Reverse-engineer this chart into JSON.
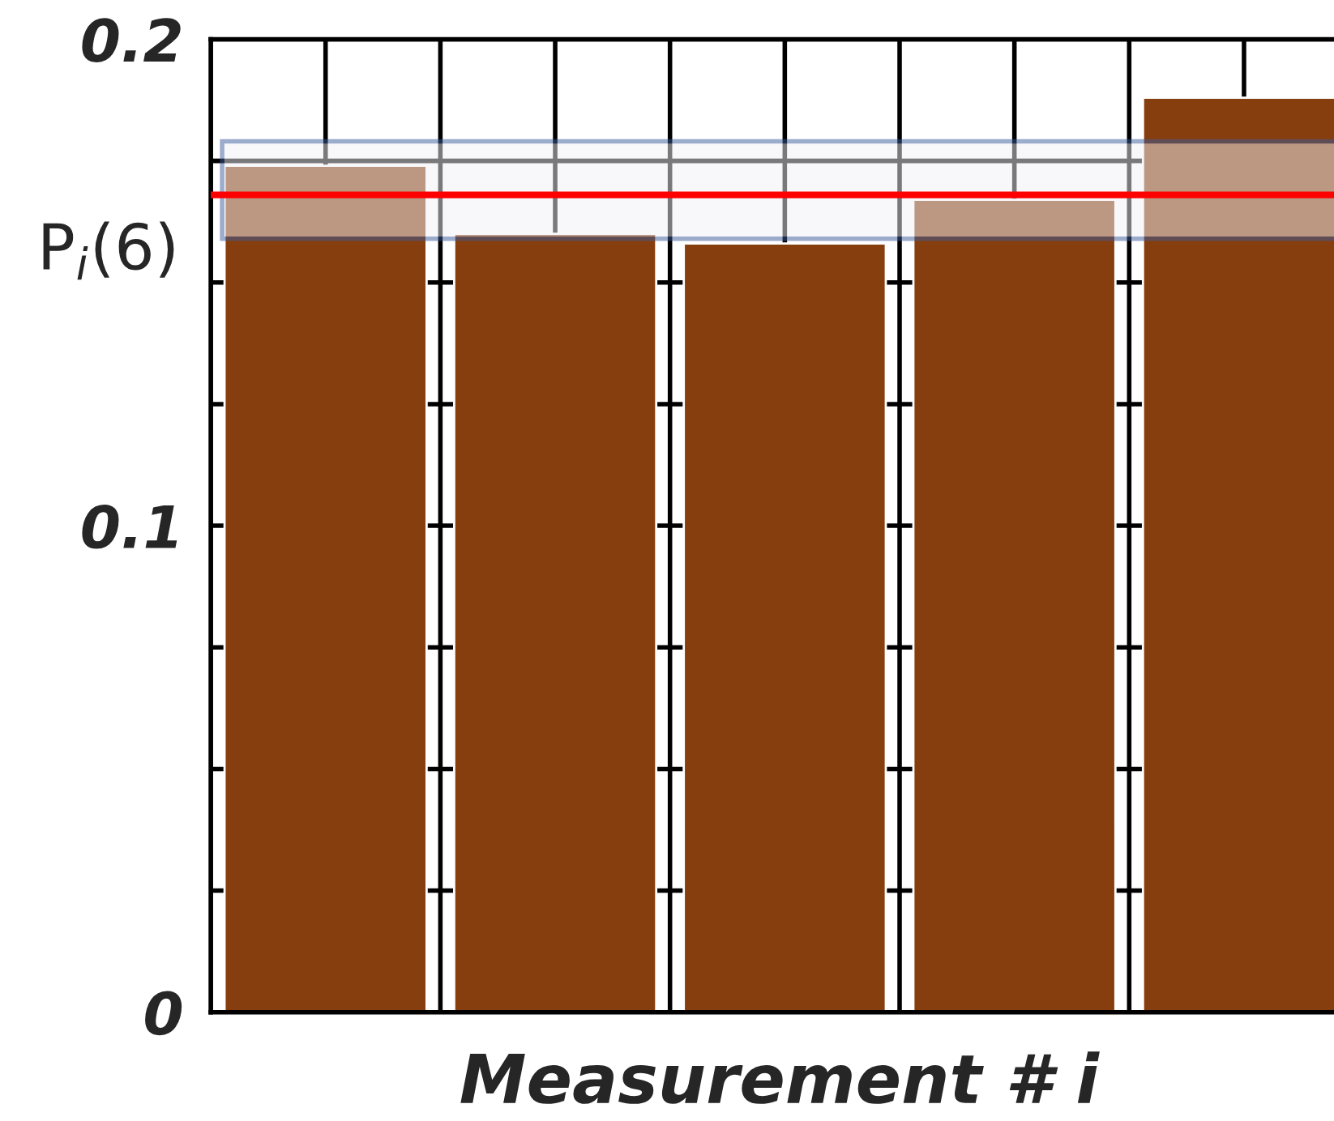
{
  "chart_data": {
    "type": "bar",
    "xlabel": "Measurement # i",
    "ylabel": "P$_{i}$(6)",
    "categories": [
      null,
      null,
      null,
      null,
      null
    ],
    "series": [
      {
        "color": "#873e0e",
        "values": [
          0.174,
          0.16,
          0.158,
          0.167,
          0.188
        ]
      }
    ],
    "ylim": [
      0,
      0.2
    ],
    "yticks": [
      0,
      {
        "value": 0.025,
        "label": null
      },
      {
        "value": 0.05,
        "label": null
      },
      {
        "value": 0.075,
        "label": null
      },
      0.1,
      {
        "value": 0.125,
        "label": null
      },
      {
        "value": 0.15,
        "label": null
      },
      {
        "value": 0.175,
        "label": null
      },
      0.2
    ],
    "grid": true,
    "ref_lines": [
      {
        "axis": "y",
        "value": 0.168,
        "color": "#ff0000"
      }
    ],
    "bands": [
      {
        "axis": "y",
        "from": 0.159,
        "to": 0.179,
        "color": "#f2f2f6"
      }
    ]
  }
}
